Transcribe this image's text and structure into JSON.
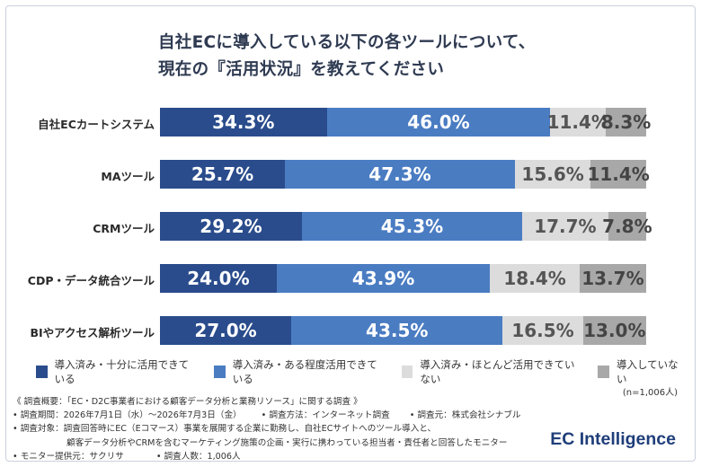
{
  "title": {
    "line1": "自社ECに導入している以下の各ツールについて、",
    "line2": "現在の『活用状況』を教えてください"
  },
  "chart_data": {
    "type": "bar",
    "orientation": "horizontal",
    "stacked": "100%",
    "categories": [
      "自社ECカートシステム",
      "MAツール",
      "CRMツール",
      "CDP・データ統合ツール",
      "BIやアクセス解析ツール"
    ],
    "series": [
      {
        "name": "導入済み・十分に活用できている",
        "color": "#2a4c8c",
        "text_color": "#ffffff",
        "values": [
          34.3,
          25.7,
          29.2,
          24.0,
          27.0
        ]
      },
      {
        "name": "導入済み・ある程度活用できている",
        "color": "#4a7cc2",
        "text_color": "#ffffff",
        "values": [
          46.0,
          47.3,
          45.3,
          43.9,
          43.5
        ]
      },
      {
        "name": "導入済み・ほとんど活用できていない",
        "color": "#dcdcdc",
        "text_color": "#555555",
        "values": [
          11.4,
          15.6,
          17.7,
          18.4,
          16.5
        ]
      },
      {
        "name": "導入していない",
        "color": "#a8a8a8",
        "text_color": "#444444",
        "values": [
          8.3,
          11.4,
          7.8,
          13.7,
          13.0
        ]
      }
    ],
    "value_suffix": "%",
    "legend_position": "bottom",
    "grid": false
  },
  "n_note": "(n=1,006人)",
  "notes": {
    "line1": "《 調査概要：「EC・D2C事業者における顧客データ分析と業務リソース」に関する調査 》",
    "line2a": "• 調査期間：2026年7月1日（水）〜2026年7月3日（金）",
    "line2b": "• 調査方法：インターネット調査",
    "line2c": "• 調査元：株式会社シナブル",
    "line3": "• 調査対象：調査回答時にEC（Eコマース）事業を展開する企業に勤務し、自社ECサイトへのツール導入と、",
    "line4": "顧客データ分析やCRMを含むマーケティング施策の企画・実行に携わっている担当者・責任者と回答したモニター",
    "line5a": "• モニター提供元：サクリサ",
    "line5b": "• 調査人数：1,006人"
  },
  "brand": "EC Intelligence"
}
